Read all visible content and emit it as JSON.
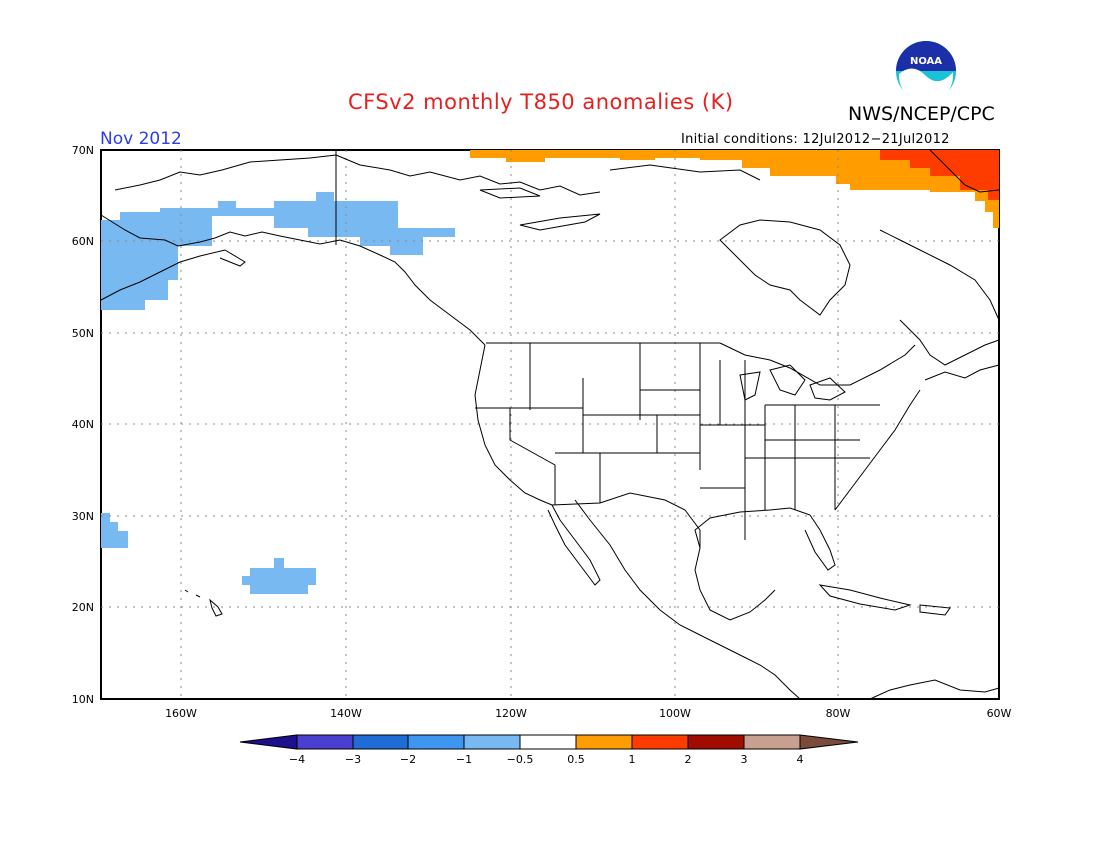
{
  "header": {
    "title": "CFSv2 monthly T850 anomalies (K)",
    "agency": "NWS/NCEP/CPC",
    "logo_text": "NOAA",
    "month": "Nov 2012",
    "initial_conditions": "Initial conditions: 12Jul2012−21Jul2012"
  },
  "axes": {
    "lat_labels": [
      "70N",
      "60N",
      "50N",
      "40N",
      "30N",
      "20N",
      "10N"
    ],
    "lon_labels": [
      "160W",
      "140W",
      "120W",
      "100W",
      "80W",
      "60W"
    ]
  },
  "colorbar": {
    "labels": [
      "−4",
      "−3",
      "−2",
      "−1",
      "−0.5",
      "0.5",
      "1",
      "2",
      "3",
      "4"
    ],
    "colors": [
      "#1e0f8c",
      "#4b3fd0",
      "#1f6cd6",
      "#3f96f0",
      "#79b9f2",
      "#ffffff",
      "#ff9d00",
      "#ff3c00",
      "#a00c00",
      "#c9a090",
      "#7a4a3a"
    ]
  },
  "anomaly_regions": [
    {
      "name": "Alaska / Gulf of Alaska",
      "anomaly_range": "-1 to -0.5",
      "color": "#79b9f2"
    },
    {
      "name": "Arctic Canada / Hudson Bay north",
      "anomaly_range": "0.5 to 1",
      "color": "#ff9d00"
    },
    {
      "name": "NE Canada / Baffin",
      "anomaly_range": "1 to 2",
      "color": "#ff3c00"
    },
    {
      "name": "Subtropical Pacific west",
      "anomaly_range": "-1 to -0.5",
      "color": "#79b9f2"
    },
    {
      "name": "Subtropical Pacific near Hawaii",
      "anomaly_range": "-1 to -0.5",
      "color": "#79b9f2"
    }
  ]
}
